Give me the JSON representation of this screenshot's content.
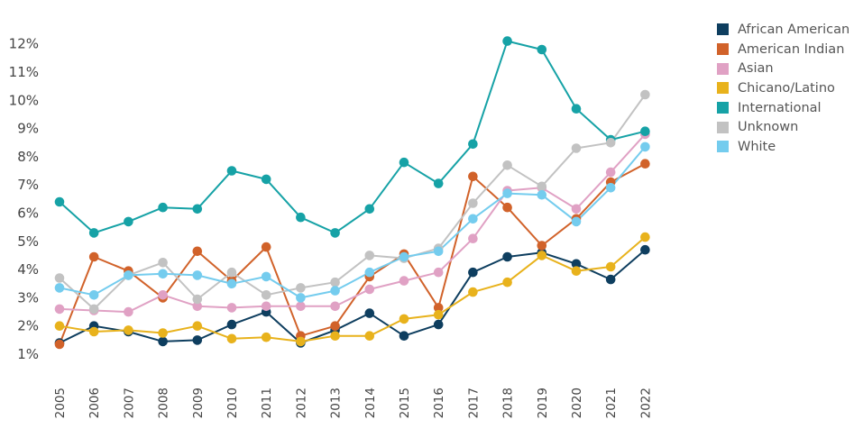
{
  "chart_data": {
    "type": "line",
    "title": "",
    "xlabel": "",
    "ylabel": "",
    "x": [
      "2005",
      "2006",
      "2007",
      "2008",
      "2009",
      "2010",
      "2011",
      "2012",
      "2013",
      "2014",
      "2015",
      "2016",
      "2017",
      "2018",
      "2019",
      "2020",
      "2021",
      "2022"
    ],
    "y_ticks": [
      "1%",
      "2%",
      "3%",
      "4%",
      "5%",
      "6%",
      "7%",
      "8%",
      "9%",
      "10%",
      "11%",
      "12%"
    ],
    "ylim": [
      0.0,
      12.5
    ],
    "grid": false,
    "legend_position": "right",
    "series": [
      {
        "name": "African American",
        "color": "#0e3e5f",
        "values": [
          1.4,
          2.0,
          1.8,
          1.45,
          1.5,
          2.05,
          2.5,
          1.4,
          1.85,
          2.45,
          1.65,
          2.05,
          3.9,
          4.45,
          4.6,
          4.2,
          3.65,
          4.7
        ]
      },
      {
        "name": "American Indian",
        "color": "#d1622a",
        "values": [
          1.35,
          4.45,
          3.95,
          3.0,
          4.65,
          3.6,
          4.8,
          1.65,
          2.0,
          3.75,
          4.55,
          2.65,
          7.3,
          6.2,
          4.85,
          5.8,
          7.1,
          7.75
        ]
      },
      {
        "name": "Asian",
        "color": "#e0a1c4",
        "values": [
          2.6,
          2.55,
          2.5,
          3.1,
          2.7,
          2.65,
          2.7,
          2.7,
          2.7,
          3.3,
          3.6,
          3.9,
          5.1,
          6.8,
          6.9,
          6.15,
          7.45,
          8.8
        ]
      },
      {
        "name": "Chicano/Latino",
        "color": "#e8b21c",
        "values": [
          2.0,
          1.8,
          1.85,
          1.75,
          2.0,
          1.55,
          1.6,
          1.45,
          1.65,
          1.65,
          2.25,
          2.4,
          3.2,
          3.55,
          4.5,
          3.95,
          4.1,
          5.15
        ]
      },
      {
        "name": "International",
        "color": "#16a2a6",
        "values": [
          6.4,
          5.3,
          5.7,
          6.2,
          6.15,
          7.5,
          7.2,
          5.85,
          5.3,
          6.15,
          7.8,
          7.05,
          8.45,
          12.1,
          11.8,
          9.7,
          8.6,
          8.9
        ]
      },
      {
        "name": "Unknown",
        "color": "#c2c2c2",
        "values": [
          3.7,
          2.6,
          3.8,
          4.25,
          2.95,
          3.9,
          3.1,
          3.35,
          3.55,
          4.5,
          4.4,
          4.75,
          6.35,
          7.7,
          6.95,
          8.3,
          8.5,
          10.2
        ]
      },
      {
        "name": "White",
        "color": "#74ccee",
        "values": [
          3.35,
          3.1,
          3.8,
          3.85,
          3.8,
          3.5,
          3.75,
          3.0,
          3.25,
          3.9,
          4.45,
          4.65,
          5.8,
          6.7,
          6.65,
          5.7,
          6.9,
          8.35
        ]
      }
    ]
  }
}
